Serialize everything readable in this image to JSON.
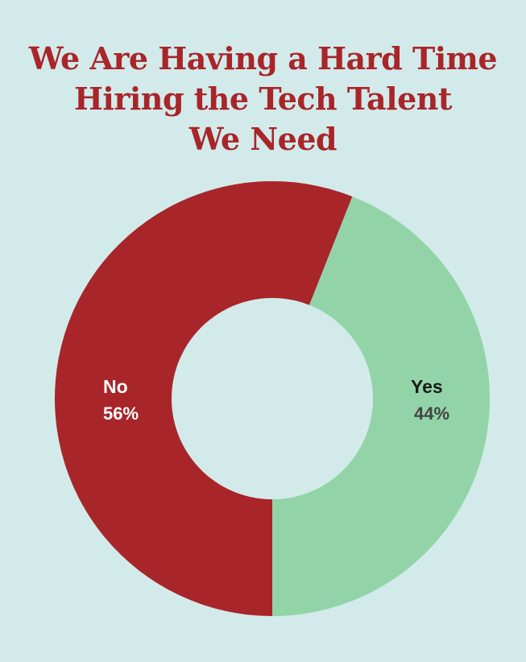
{
  "chart_data": {
    "type": "pie",
    "title": "We Are Having a Hard Time Hiring the Tech Talent We Need",
    "title_lines": [
      "We Are Having a Hard Time",
      "Hiring the Tech Talent",
      "We Need"
    ],
    "slices": [
      {
        "label": "No",
        "value": 56,
        "value_label": "56%",
        "color": "#a82529",
        "label_color": "#ffffff",
        "value_color": "#ffffff"
      },
      {
        "label": "Yes",
        "value": 44,
        "value_label": "44%",
        "color": "#92d4a8",
        "label_color": "#1a1a1a",
        "value_color": "#444444"
      }
    ],
    "donut": true,
    "legend": "none"
  },
  "colors": {
    "background": "#d3eaea",
    "title": "#a82529"
  }
}
